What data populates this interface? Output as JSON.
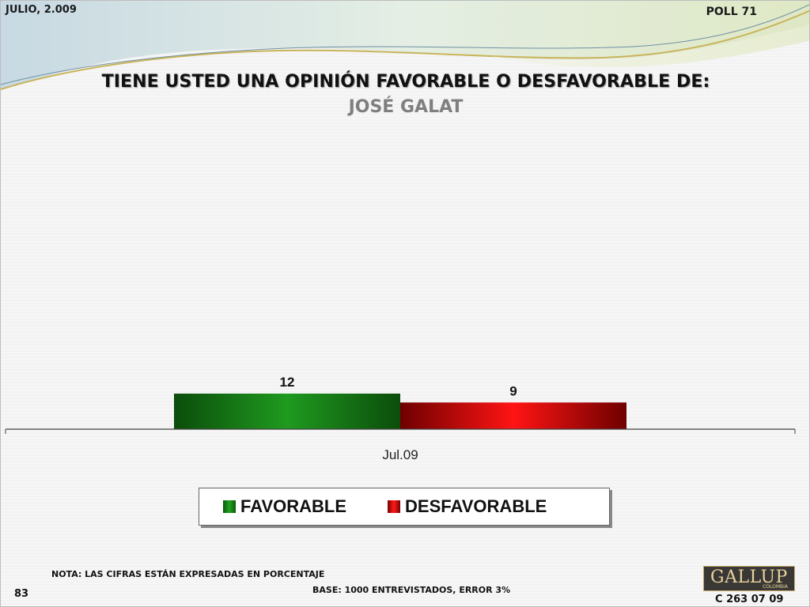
{
  "header": {
    "date": "JULIO, 2.009",
    "poll": "POLL 71"
  },
  "title": {
    "question": "TIENE USTED UNA OPINIÓN FAVORABLE O DESFAVORABLE DE:",
    "subject": "JOSÉ GALAT"
  },
  "chart_data": {
    "type": "bar",
    "categories": [
      "Jul.09"
    ],
    "series": [
      {
        "name": "FAVORABLE",
        "values": [
          12
        ],
        "color": "#1f9a1f"
      },
      {
        "name": "DESFAVORABLE",
        "values": [
          9
        ],
        "color": "#ff1414"
      }
    ],
    "data_labels": [
      "12",
      "9"
    ],
    "legend_position": "bottom",
    "grid": false
  },
  "footer": {
    "note": "NOTA: LAS CIFRAS ESTÁN EXPRESADAS EN PORCENTAJE",
    "base": "BASE: 1000 ENTREVISTADOS, ERROR 3%",
    "page_number": "83",
    "code": "C 263 07 09",
    "logo_text": "GALLUP",
    "logo_subtext": "COLOMBIA"
  }
}
